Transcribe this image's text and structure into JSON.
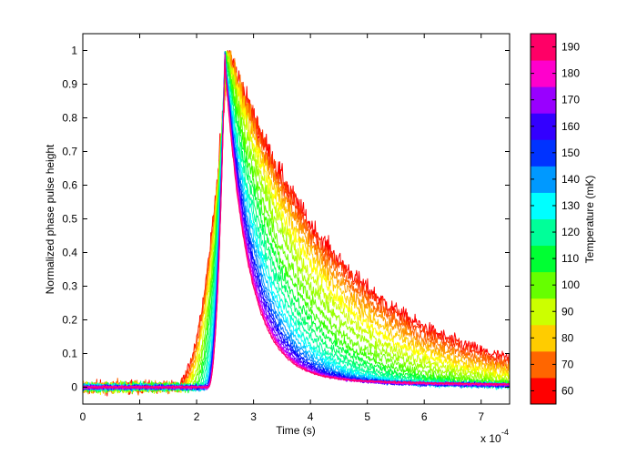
{
  "chart_data": {
    "type": "line",
    "xlabel": "Time (s)",
    "ylabel": "Normalized phase pulse height",
    "x_multiplier_label": "x 10",
    "x_multiplier_exp": "-4",
    "xlim": [
      0,
      7.5
    ],
    "ylim": [
      -0.05,
      1.05
    ],
    "xticks": [
      0,
      1,
      2,
      3,
      4,
      5,
      6,
      7
    ],
    "yticks": [
      0,
      0.1,
      0.2,
      0.3,
      0.4,
      0.5,
      0.6,
      0.7,
      0.8,
      0.9,
      1
    ],
    "grid": false,
    "colorbar": {
      "label": "Temperature (mK)",
      "ticks": [
        60,
        70,
        80,
        90,
        100,
        110,
        120,
        130,
        140,
        150,
        160,
        170,
        180,
        190
      ],
      "range": [
        55,
        195
      ],
      "colors": [
        "#ff0000",
        "#ff6600",
        "#ffcc00",
        "#ccff00",
        "#66ff00",
        "#00ff33",
        "#00ff99",
        "#00ffff",
        "#0099ff",
        "#0033ff",
        "#3300ff",
        "#9900ff",
        "#ff00cc",
        "#ff0066"
      ]
    },
    "series": [
      {
        "temperature": 60,
        "rise_start": 1.6,
        "peak": 2.55,
        "decay_tau": 2.0,
        "color": "#ff0000"
      },
      {
        "temperature": 65,
        "rise_start": 1.62,
        "peak": 2.55,
        "decay_tau": 1.92,
        "color": "#ff3300"
      },
      {
        "temperature": 70,
        "rise_start": 1.65,
        "peak": 2.55,
        "decay_tau": 1.8,
        "color": "#ff6600"
      },
      {
        "temperature": 75,
        "rise_start": 1.68,
        "peak": 2.55,
        "decay_tau": 1.7,
        "color": "#ff9900"
      },
      {
        "temperature": 80,
        "rise_start": 1.72,
        "peak": 2.54,
        "decay_tau": 1.58,
        "color": "#ffcc00"
      },
      {
        "temperature": 85,
        "rise_start": 1.75,
        "peak": 2.54,
        "decay_tau": 1.46,
        "color": "#ffff00"
      },
      {
        "temperature": 90,
        "rise_start": 1.8,
        "peak": 2.53,
        "decay_tau": 1.34,
        "color": "#ccff00"
      },
      {
        "temperature": 95,
        "rise_start": 1.84,
        "peak": 2.53,
        "decay_tau": 1.22,
        "color": "#99ff00"
      },
      {
        "temperature": 100,
        "rise_start": 1.88,
        "peak": 2.52,
        "decay_tau": 1.1,
        "color": "#66ff00"
      },
      {
        "temperature": 105,
        "rise_start": 1.92,
        "peak": 2.52,
        "decay_tau": 1.0,
        "color": "#33ff00"
      },
      {
        "temperature": 110,
        "rise_start": 1.96,
        "peak": 2.51,
        "decay_tau": 0.92,
        "color": "#00ff33"
      },
      {
        "temperature": 115,
        "rise_start": 2.0,
        "peak": 2.51,
        "decay_tau": 0.84,
        "color": "#00ff66"
      },
      {
        "temperature": 120,
        "rise_start": 2.04,
        "peak": 2.5,
        "decay_tau": 0.78,
        "color": "#00ff99"
      },
      {
        "temperature": 125,
        "rise_start": 2.07,
        "peak": 2.5,
        "decay_tau": 0.72,
        "color": "#00ffcc"
      },
      {
        "temperature": 130,
        "rise_start": 2.1,
        "peak": 2.5,
        "decay_tau": 0.67,
        "color": "#00ffff"
      },
      {
        "temperature": 135,
        "rise_start": 2.12,
        "peak": 2.5,
        "decay_tau": 0.63,
        "color": "#00ccff"
      },
      {
        "temperature": 140,
        "rise_start": 2.14,
        "peak": 2.5,
        "decay_tau": 0.59,
        "color": "#0099ff"
      },
      {
        "temperature": 145,
        "rise_start": 2.15,
        "peak": 2.5,
        "decay_tau": 0.56,
        "color": "#0066ff"
      },
      {
        "temperature": 150,
        "rise_start": 2.16,
        "peak": 2.5,
        "decay_tau": 0.53,
        "color": "#0033ff"
      },
      {
        "temperature": 155,
        "rise_start": 2.17,
        "peak": 2.5,
        "decay_tau": 0.51,
        "color": "#0000ff"
      },
      {
        "temperature": 160,
        "rise_start": 2.18,
        "peak": 2.5,
        "decay_tau": 0.49,
        "color": "#3300ff"
      },
      {
        "temperature": 165,
        "rise_start": 2.18,
        "peak": 2.5,
        "decay_tau": 0.47,
        "color": "#6600ff"
      },
      {
        "temperature": 170,
        "rise_start": 2.19,
        "peak": 2.5,
        "decay_tau": 0.45,
        "color": "#9900ff"
      },
      {
        "temperature": 175,
        "rise_start": 2.19,
        "peak": 2.5,
        "decay_tau": 0.44,
        "color": "#cc00ff"
      },
      {
        "temperature": 180,
        "rise_start": 2.2,
        "peak": 2.5,
        "decay_tau": 0.43,
        "color": "#ff00cc"
      },
      {
        "temperature": 185,
        "rise_start": 2.2,
        "peak": 2.5,
        "decay_tau": 0.42,
        "color": "#ff0099"
      },
      {
        "temperature": 190,
        "rise_start": 2.2,
        "peak": 2.5,
        "decay_tau": 0.41,
        "color": "#ff0066"
      }
    ]
  }
}
